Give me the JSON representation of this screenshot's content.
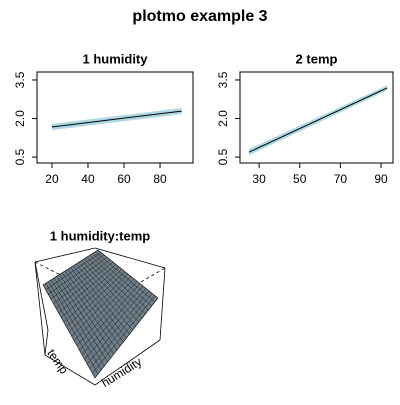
{
  "title": "plotmo example 3",
  "chart_data": [
    {
      "type": "line",
      "title": "1  humidity",
      "xlim": [
        11.7,
        98.3
      ],
      "ylim": [
        0.27,
        3.81
      ],
      "xticks": [
        20,
        40,
        60,
        80
      ],
      "yticks": [
        {
          "value": 0.5,
          "label": "0.5"
        },
        {
          "value": 2,
          "label": "2.0"
        },
        {
          "value": 3.5,
          "label": "3.5"
        }
      ],
      "x": [
        20,
        92
      ],
      "series": [
        {
          "color": "#000000",
          "band_color": "#add8e6",
          "values": [
            1.67,
            2.29
          ],
          "lower": [
            1.55,
            2.17
          ],
          "upper": [
            1.79,
            2.41
          ]
        }
      ]
    },
    {
      "type": "line",
      "title": "2  temp",
      "xlim": [
        20.6,
        95.9
      ],
      "ylim": [
        0.27,
        3.81
      ],
      "xticks": [
        30,
        50,
        70,
        90
      ],
      "yticks": [
        {
          "value": 0.5,
          "label": "0.5"
        },
        {
          "value": 2,
          "label": "2.0"
        },
        {
          "value": 3.5,
          "label": "3.5"
        }
      ],
      "x": [
        25,
        93
      ],
      "series": [
        {
          "color": "#000000",
          "band_color": "#add8e6",
          "values": [
            0.69,
            3.19
          ],
          "lower": [
            0.57,
            3.09
          ],
          "upper": [
            0.81,
            3.29
          ]
        }
      ]
    },
    {
      "type": "surface",
      "title": "1 humidity:temp",
      "xlabel": "humidity",
      "ylabel": "temp",
      "color": "#6f7e88"
    }
  ]
}
